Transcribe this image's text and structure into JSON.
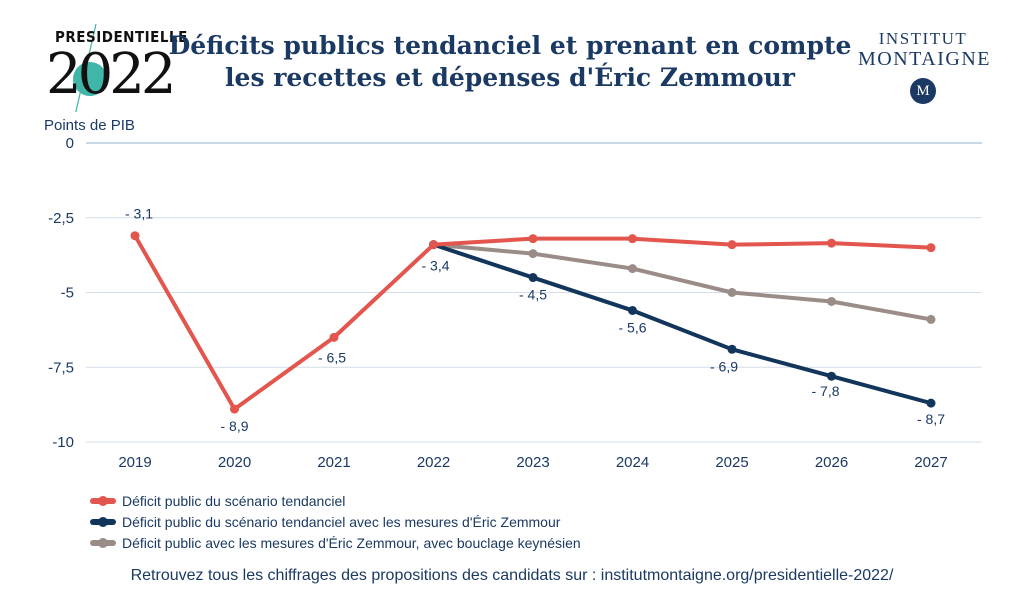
{
  "logo": {
    "small_text": "PRESIDENTIELLE",
    "year": "2022"
  },
  "brand": {
    "line1": "INSTITUT",
    "line2": "MONTAIGNE",
    "badge": "M",
    "color": "#1b3a63"
  },
  "footer": "Retrouvez tous les chiffrages des propositions des candidats sur : institutmontaigne.org/presidentielle-2022/",
  "chart_data": {
    "type": "line",
    "title_lines": [
      "Déficits publics tendanciel et prenant en compte",
      "les recettes et dépenses d'Éric Zemmour"
    ],
    "ylabel": "Points de PIB",
    "xlabel": "",
    "categories": [
      "2019",
      "2020",
      "2021",
      "2022",
      "2023",
      "2024",
      "2025",
      "2026",
      "2027"
    ],
    "ylim": [
      -10,
      0
    ],
    "yticks": [
      0,
      -2.5,
      -5,
      -7.5,
      -10
    ],
    "ytick_labels": [
      "0",
      "-2,5",
      "-5",
      "-7,5",
      "-10"
    ],
    "grid": true,
    "legend_position": "bottom-left",
    "series": [
      {
        "name": "Déficit public du scénario tendanciel",
        "color": "#e2564e",
        "values": [
          -3.1,
          -8.9,
          -6.5,
          -3.4,
          -3.2,
          -3.2,
          -3.4,
          -3.35,
          -3.5
        ]
      },
      {
        "name": "Déficit public du scénario tendanciel avec les mesures d'Éric Zemmour",
        "color": "#12355b",
        "values": [
          null,
          null,
          null,
          -3.4,
          -4.5,
          -5.6,
          -6.9,
          -7.8,
          -8.7
        ]
      },
      {
        "name": "Déficit public avec les mesures d'Éric Zemmour, avec bouclage keynésien",
        "color": "#9a8c87",
        "values": [
          null,
          null,
          null,
          -3.4,
          -3.7,
          -4.2,
          -5.0,
          -5.3,
          -5.9
        ]
      }
    ],
    "data_labels": [
      {
        "series": 0,
        "index": 0,
        "text": "- 3,1"
      },
      {
        "series": 0,
        "index": 1,
        "text": "- 8,9"
      },
      {
        "series": 0,
        "index": 2,
        "text": "- 6,5"
      },
      {
        "series": 0,
        "index": 3,
        "text": "- 3,4"
      },
      {
        "series": 1,
        "index": 4,
        "text": "- 4,5"
      },
      {
        "series": 1,
        "index": 5,
        "text": "- 5,6"
      },
      {
        "series": 1,
        "index": 6,
        "text": "- 6,9"
      },
      {
        "series": 1,
        "index": 7,
        "text": "- 7,8"
      },
      {
        "series": 1,
        "index": 8,
        "text": "- 8,7"
      }
    ]
  }
}
